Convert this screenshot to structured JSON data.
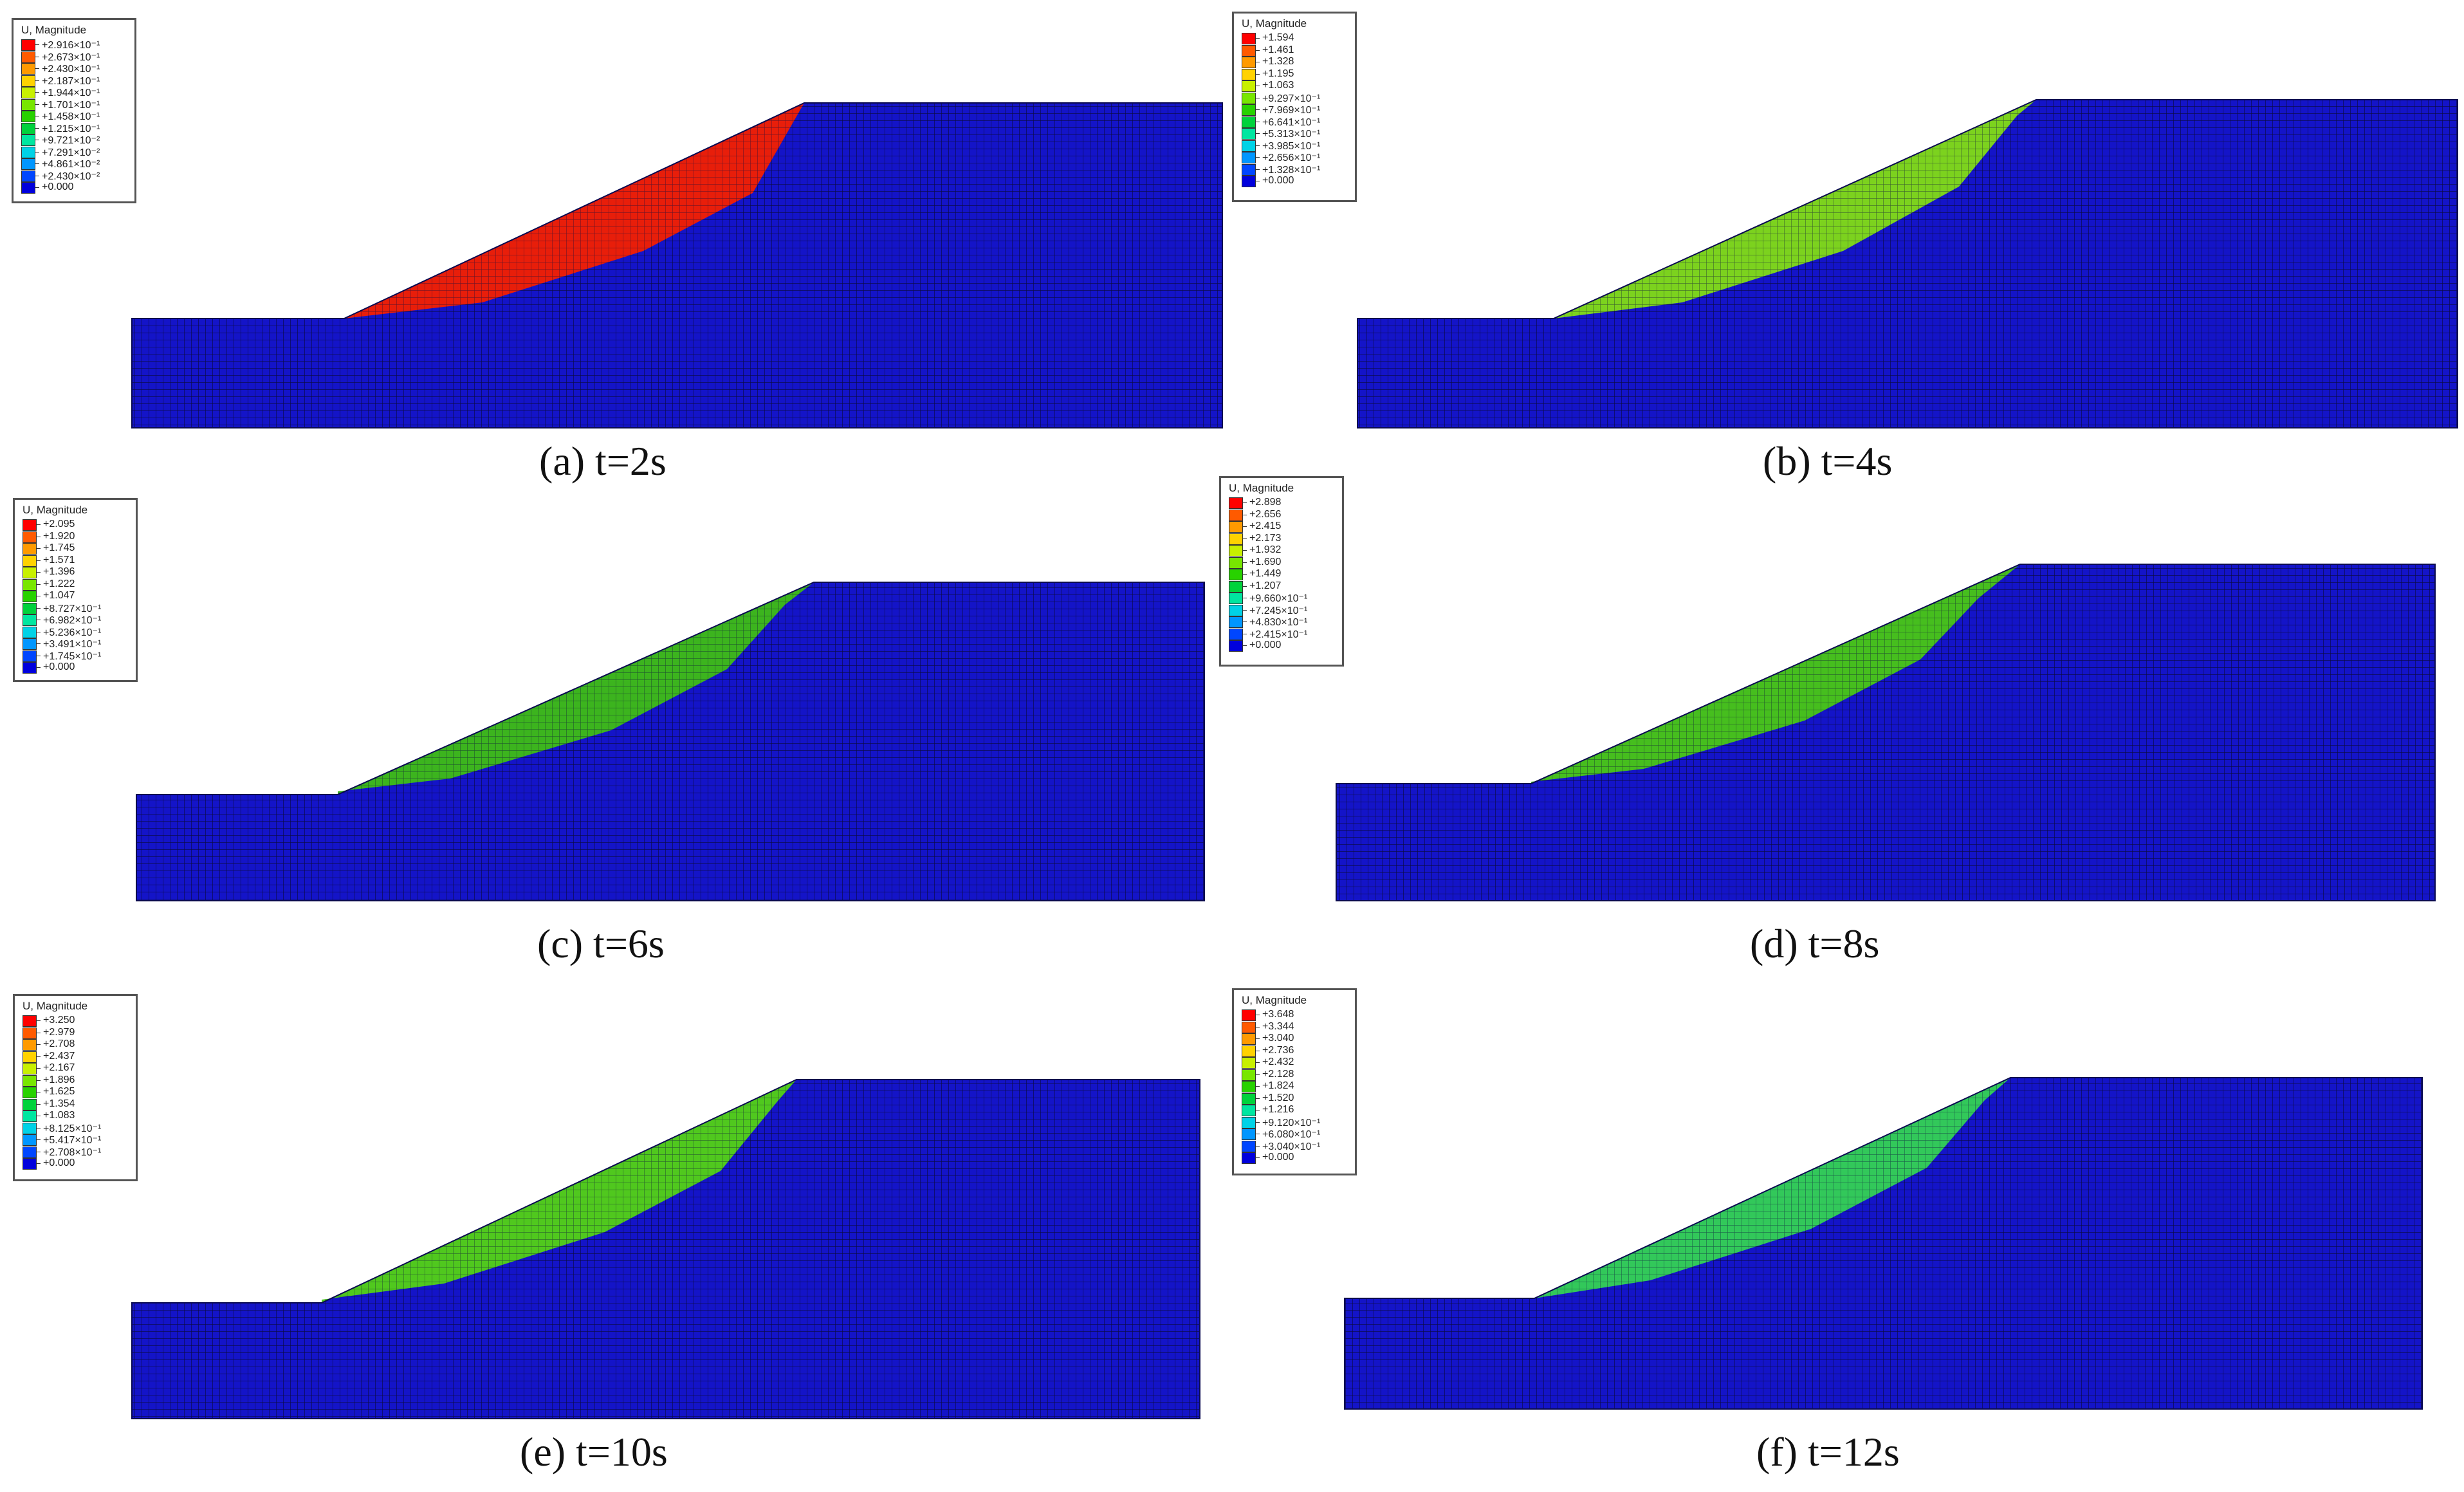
{
  "colors": {
    "stable_mesh": "#1414c8",
    "mesh_lines": "#0a0a3c",
    "background": "#ffffff"
  },
  "panels": [
    {
      "id": "a",
      "caption": "(a) t=2s",
      "legend_title": "U, Magnitude",
      "legend": [
        {
          "label": "+2.916×10⁻¹",
          "color": "#ff0000"
        },
        {
          "label": "+2.673×10⁻¹",
          "color": "#ff5a00"
        },
        {
          "label": "+2.430×10⁻¹",
          "color": "#ff9a00"
        },
        {
          "label": "+2.187×10⁻¹",
          "color": "#ffd200"
        },
        {
          "label": "+1.944×10⁻¹",
          "color": "#c8f000"
        },
        {
          "label": "+1.701×10⁻¹",
          "color": "#78e600"
        },
        {
          "label": "+1.458×10⁻¹",
          "color": "#28d200"
        },
        {
          "label": "+1.215×10⁻¹",
          "color": "#00d23c"
        },
        {
          "label": "+9.721×10⁻²",
          "color": "#00e6a0"
        },
        {
          "label": "+7.291×10⁻²",
          "color": "#00d2e6"
        },
        {
          "label": "+4.861×10⁻²",
          "color": "#0096ff"
        },
        {
          "label": "+2.430×10⁻²",
          "color": "#0046ff"
        },
        {
          "label": "+0.000",
          "color": "#0000dc"
        }
      ],
      "sliding_mass_color": "#e81e0a"
    },
    {
      "id": "b",
      "caption": "(b) t=4s",
      "legend_title": "U, Magnitude",
      "legend": [
        {
          "label": "+1.594",
          "color": "#ff0000"
        },
        {
          "label": "+1.461",
          "color": "#ff5a00"
        },
        {
          "label": "+1.328",
          "color": "#ff9a00"
        },
        {
          "label": "+1.195",
          "color": "#ffd200"
        },
        {
          "label": "+1.063",
          "color": "#c8f000"
        },
        {
          "label": "+9.297×10⁻¹",
          "color": "#78e600"
        },
        {
          "label": "+7.969×10⁻¹",
          "color": "#28d200"
        },
        {
          "label": "+6.641×10⁻¹",
          "color": "#00d23c"
        },
        {
          "label": "+5.313×10⁻¹",
          "color": "#00e6a0"
        },
        {
          "label": "+3.985×10⁻¹",
          "color": "#00d2e6"
        },
        {
          "label": "+2.656×10⁻¹",
          "color": "#0096ff"
        },
        {
          "label": "+1.328×10⁻¹",
          "color": "#0046ff"
        },
        {
          "label": "+0.000",
          "color": "#0000dc"
        }
      ],
      "sliding_mass_color": "#7cd21e"
    },
    {
      "id": "c",
      "caption": "(c) t=6s",
      "legend_title": "U, Magnitude",
      "legend": [
        {
          "label": "+2.095",
          "color": "#ff0000"
        },
        {
          "label": "+1.920",
          "color": "#ff5a00"
        },
        {
          "label": "+1.745",
          "color": "#ff9a00"
        },
        {
          "label": "+1.571",
          "color": "#ffd200"
        },
        {
          "label": "+1.396",
          "color": "#c8f000"
        },
        {
          "label": "+1.222",
          "color": "#78e600"
        },
        {
          "label": "+1.047",
          "color": "#28d200"
        },
        {
          "label": "+8.727×10⁻¹",
          "color": "#00d23c"
        },
        {
          "label": "+6.982×10⁻¹",
          "color": "#00e6a0"
        },
        {
          "label": "+5.236×10⁻¹",
          "color": "#00d2e6"
        },
        {
          "label": "+3.491×10⁻¹",
          "color": "#0096ff"
        },
        {
          "label": "+1.745×10⁻¹",
          "color": "#0046ff"
        },
        {
          "label": "+0.000",
          "color": "#0000dc"
        }
      ],
      "sliding_mass_color": "#3cb41e"
    },
    {
      "id": "d",
      "caption": "(d) t=8s",
      "legend_title": "U, Magnitude",
      "legend": [
        {
          "label": "+2.898",
          "color": "#ff0000"
        },
        {
          "label": "+2.656",
          "color": "#ff5a00"
        },
        {
          "label": "+2.415",
          "color": "#ff9a00"
        },
        {
          "label": "+2.173",
          "color": "#ffd200"
        },
        {
          "label": "+1.932",
          "color": "#c8f000"
        },
        {
          "label": "+1.690",
          "color": "#78e600"
        },
        {
          "label": "+1.449",
          "color": "#28d200"
        },
        {
          "label": "+1.207",
          "color": "#00d23c"
        },
        {
          "label": "+9.660×10⁻¹",
          "color": "#00e6a0"
        },
        {
          "label": "+7.245×10⁻¹",
          "color": "#00d2e6"
        },
        {
          "label": "+4.830×10⁻¹",
          "color": "#0096ff"
        },
        {
          "label": "+2.415×10⁻¹",
          "color": "#0046ff"
        },
        {
          "label": "+0.000",
          "color": "#0000dc"
        }
      ],
      "sliding_mass_color": "#46be1e"
    },
    {
      "id": "e",
      "caption": "(e) t=10s",
      "legend_title": "U, Magnitude",
      "legend": [
        {
          "label": "+3.250",
          "color": "#ff0000"
        },
        {
          "label": "+2.979",
          "color": "#ff5a00"
        },
        {
          "label": "+2.708",
          "color": "#ff9a00"
        },
        {
          "label": "+2.437",
          "color": "#ffd200"
        },
        {
          "label": "+2.167",
          "color": "#c8f000"
        },
        {
          "label": "+1.896",
          "color": "#78e600"
        },
        {
          "label": "+1.625",
          "color": "#28d200"
        },
        {
          "label": "+1.354",
          "color": "#00d23c"
        },
        {
          "label": "+1.083",
          "color": "#00e6a0"
        },
        {
          "label": "+8.125×10⁻¹",
          "color": "#00d2e6"
        },
        {
          "label": "+5.417×10⁻¹",
          "color": "#0096ff"
        },
        {
          "label": "+2.708×10⁻¹",
          "color": "#0046ff"
        },
        {
          "label": "+0.000",
          "color": "#0000dc"
        }
      ],
      "sliding_mass_color": "#50c81e"
    },
    {
      "id": "f",
      "caption": "(f) t=12s",
      "legend_title": "U, Magnitude",
      "legend": [
        {
          "label": "+3.648",
          "color": "#ff0000"
        },
        {
          "label": "+3.344",
          "color": "#ff5a00"
        },
        {
          "label": "+3.040",
          "color": "#ff9a00"
        },
        {
          "label": "+2.736",
          "color": "#ffd200"
        },
        {
          "label": "+2.432",
          "color": "#c8f000"
        },
        {
          "label": "+2.128",
          "color": "#78e600"
        },
        {
          "label": "+1.824",
          "color": "#28d200"
        },
        {
          "label": "+1.520",
          "color": "#00d23c"
        },
        {
          "label": "+1.216",
          "color": "#00e6a0"
        },
        {
          "label": "+9.120×10⁻¹",
          "color": "#00d2e6"
        },
        {
          "label": "+6.080×10⁻¹",
          "color": "#0096ff"
        },
        {
          "label": "+3.040×10⁻¹",
          "color": "#0046ff"
        },
        {
          "label": "+0.000",
          "color": "#0000dc"
        }
      ],
      "sliding_mass_color": "#32c85a"
    }
  ]
}
